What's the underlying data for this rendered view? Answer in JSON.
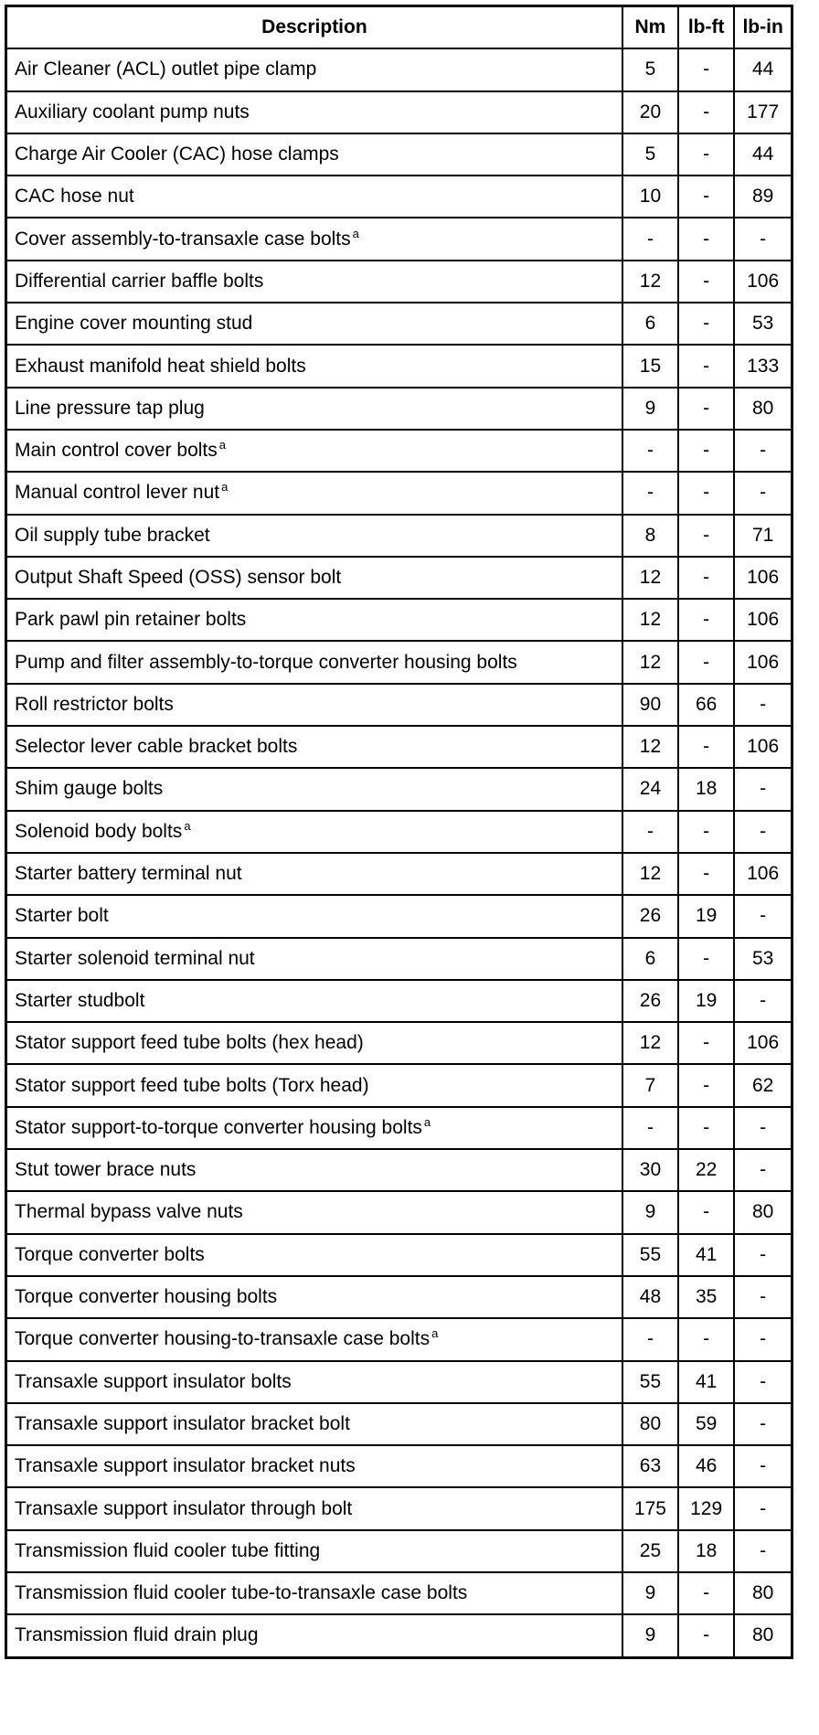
{
  "table": {
    "headers": [
      "Description",
      "Nm",
      "lb-ft",
      "lb-in"
    ],
    "rows": [
      {
        "description": "Air Cleaner (ACL) outlet pipe clamp",
        "note": "",
        "nm": "5",
        "lbft": "-",
        "lbin": "44"
      },
      {
        "description": "Auxiliary coolant pump nuts",
        "note": "",
        "nm": "20",
        "lbft": "-",
        "lbin": "177"
      },
      {
        "description": "Charge Air Cooler (CAC) hose clamps",
        "note": "",
        "nm": "5",
        "lbft": "-",
        "lbin": "44"
      },
      {
        "description": "CAC hose nut",
        "note": "",
        "nm": "10",
        "lbft": "-",
        "lbin": "89"
      },
      {
        "description": "Cover assembly-to-transaxle case bolts",
        "note": "a",
        "nm": "-",
        "lbft": "-",
        "lbin": "-"
      },
      {
        "description": "Differential carrier baffle bolts",
        "note": "",
        "nm": "12",
        "lbft": "-",
        "lbin": "106"
      },
      {
        "description": "Engine cover mounting stud",
        "note": "",
        "nm": "6",
        "lbft": "-",
        "lbin": "53"
      },
      {
        "description": "Exhaust manifold heat shield bolts",
        "note": "",
        "nm": "15",
        "lbft": "-",
        "lbin": "133"
      },
      {
        "description": "Line pressure tap plug",
        "note": "",
        "nm": "9",
        "lbft": "-",
        "lbin": "80"
      },
      {
        "description": "Main control cover bolts",
        "note": "a",
        "nm": "-",
        "lbft": "-",
        "lbin": "-"
      },
      {
        "description": "Manual control lever nut",
        "note": "a",
        "nm": "-",
        "lbft": "-",
        "lbin": "-"
      },
      {
        "description": "Oil supply tube bracket",
        "note": "",
        "nm": "8",
        "lbft": "-",
        "lbin": "71"
      },
      {
        "description": "Output Shaft Speed (OSS) sensor bolt",
        "note": "",
        "nm": "12",
        "lbft": "-",
        "lbin": "106"
      },
      {
        "description": "Park pawl pin retainer bolts",
        "note": "",
        "nm": "12",
        "lbft": "-",
        "lbin": "106"
      },
      {
        "description": "Pump and filter assembly-to-torque converter housing bolts",
        "note": "",
        "nm": "12",
        "lbft": "-",
        "lbin": "106"
      },
      {
        "description": "Roll restrictor bolts",
        "note": "",
        "nm": "90",
        "lbft": "66",
        "lbin": "-"
      },
      {
        "description": "Selector lever cable bracket bolts",
        "note": "",
        "nm": "12",
        "lbft": "-",
        "lbin": "106"
      },
      {
        "description": "Shim gauge bolts",
        "note": "",
        "nm": "24",
        "lbft": "18",
        "lbin": "-"
      },
      {
        "description": "Solenoid body bolts",
        "note": "a",
        "nm": "-",
        "lbft": "-",
        "lbin": "-"
      },
      {
        "description": "Starter battery terminal nut",
        "note": "",
        "nm": "12",
        "lbft": "-",
        "lbin": "106"
      },
      {
        "description": "Starter bolt",
        "note": "",
        "nm": "26",
        "lbft": "19",
        "lbin": "-"
      },
      {
        "description": "Starter solenoid terminal nut",
        "note": "",
        "nm": "6",
        "lbft": "-",
        "lbin": "53"
      },
      {
        "description": "Starter studbolt",
        "note": "",
        "nm": "26",
        "lbft": "19",
        "lbin": "-"
      },
      {
        "description": "Stator support feed tube bolts (hex head)",
        "note": "",
        "nm": "12",
        "lbft": "-",
        "lbin": "106"
      },
      {
        "description": "Stator support feed tube bolts (Torx head)",
        "note": "",
        "nm": "7",
        "lbft": "-",
        "lbin": "62"
      },
      {
        "description": "Stator support-to-torque converter housing bolts",
        "note": "a",
        "nm": "-",
        "lbft": "-",
        "lbin": "-"
      },
      {
        "description": "Stut tower brace nuts",
        "note": "",
        "nm": "30",
        "lbft": "22",
        "lbin": "-"
      },
      {
        "description": "Thermal bypass valve nuts",
        "note": "",
        "nm": "9",
        "lbft": "-",
        "lbin": "80"
      },
      {
        "description": "Torque converter bolts",
        "note": "",
        "nm": "55",
        "lbft": "41",
        "lbin": "-"
      },
      {
        "description": "Torque converter housing bolts",
        "note": "",
        "nm": "48",
        "lbft": "35",
        "lbin": "-"
      },
      {
        "description": "Torque converter housing-to-transaxle case bolts",
        "note": "a",
        "nm": "-",
        "lbft": "-",
        "lbin": "-"
      },
      {
        "description": "Transaxle support insulator bolts",
        "note": "",
        "nm": "55",
        "lbft": "41",
        "lbin": "-"
      },
      {
        "description": "Transaxle support insulator bracket bolt",
        "note": "",
        "nm": "80",
        "lbft": "59",
        "lbin": "-"
      },
      {
        "description": "Transaxle support insulator bracket nuts",
        "note": "",
        "nm": "63",
        "lbft": "46",
        "lbin": "-"
      },
      {
        "description": "Transaxle support insulator through bolt",
        "note": "",
        "nm": "175",
        "lbft": "129",
        "lbin": "-"
      },
      {
        "description": "Transmission fluid cooler tube fitting",
        "note": "",
        "nm": "25",
        "lbft": "18",
        "lbin": "-"
      },
      {
        "description": "Transmission fluid cooler tube-to-transaxle case bolts",
        "note": "",
        "nm": "9",
        "lbft": "-",
        "lbin": "80"
      },
      {
        "description": "Transmission fluid drain plug",
        "note": "",
        "nm": "9",
        "lbft": "-",
        "lbin": "80"
      }
    ]
  }
}
